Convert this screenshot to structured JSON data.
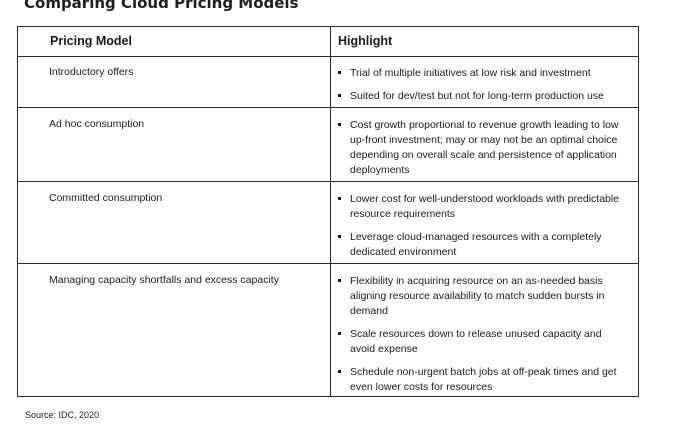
{
  "title": "Comparing Cloud Pricing Models",
  "table": {
    "headers": {
      "model": "Pricing Model",
      "highlight": "Highlight"
    },
    "rows": [
      {
        "model": "Introductory offers",
        "highlights": [
          "Trial of multiple initiatives at low risk and investment",
          "Suited for dev/test but not for long-term production use"
        ]
      },
      {
        "model": "Ad hoc consumption",
        "highlights": [
          "Cost growth proportional to revenue growth leading to low up-front investment; may or may not be an optimal choice depending on overall scale and persistence of application deployments"
        ]
      },
      {
        "model": "Committed consumption",
        "highlights": [
          "Lower cost for well-understood workloads with predictable resource requirements",
          "Leverage cloud-managed resources with a completely dedicated environment"
        ]
      },
      {
        "model": "Managing capacity shortfalls and excess capacity",
        "highlights": [
          "Flexibility in acquiring resource on an as-needed basis aligning resource availability to match sudden bursts in demand",
          "Scale resources down to release unused capacity and avoid expense",
          "Schedule non-urgent batch jobs at off-peak times and get even lower costs for resources"
        ]
      }
    ]
  },
  "source": "Source: IDC, 2020"
}
